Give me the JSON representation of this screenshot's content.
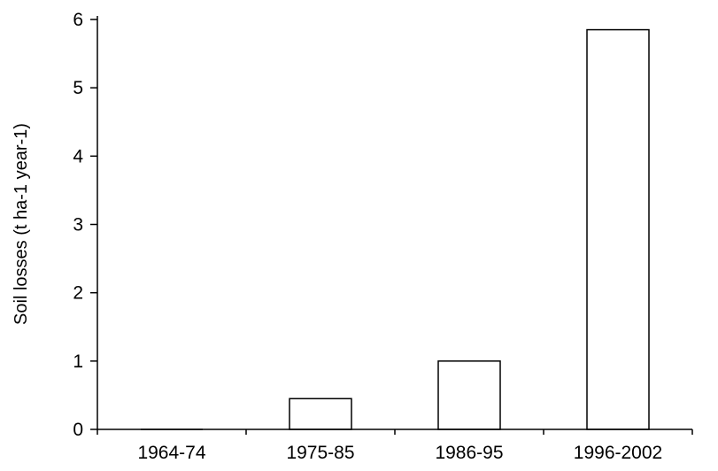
{
  "chart_data": {
    "type": "bar",
    "title": "",
    "xlabel": "",
    "ylabel": "Soil losses (t ha-1 year-1)",
    "categories": [
      "1964-74",
      "1975-85",
      "1986-95",
      "1996-2002"
    ],
    "values": [
      0,
      0.45,
      1.0,
      5.85
    ],
    "ylim": [
      0,
      6
    ],
    "yticks": [
      0,
      1,
      2,
      3,
      4,
      5,
      6
    ],
    "grid": false,
    "legend": "none",
    "colors": {
      "bar_fill": "#ffffff",
      "bar_stroke": "#000000",
      "axis": "#000000"
    }
  }
}
